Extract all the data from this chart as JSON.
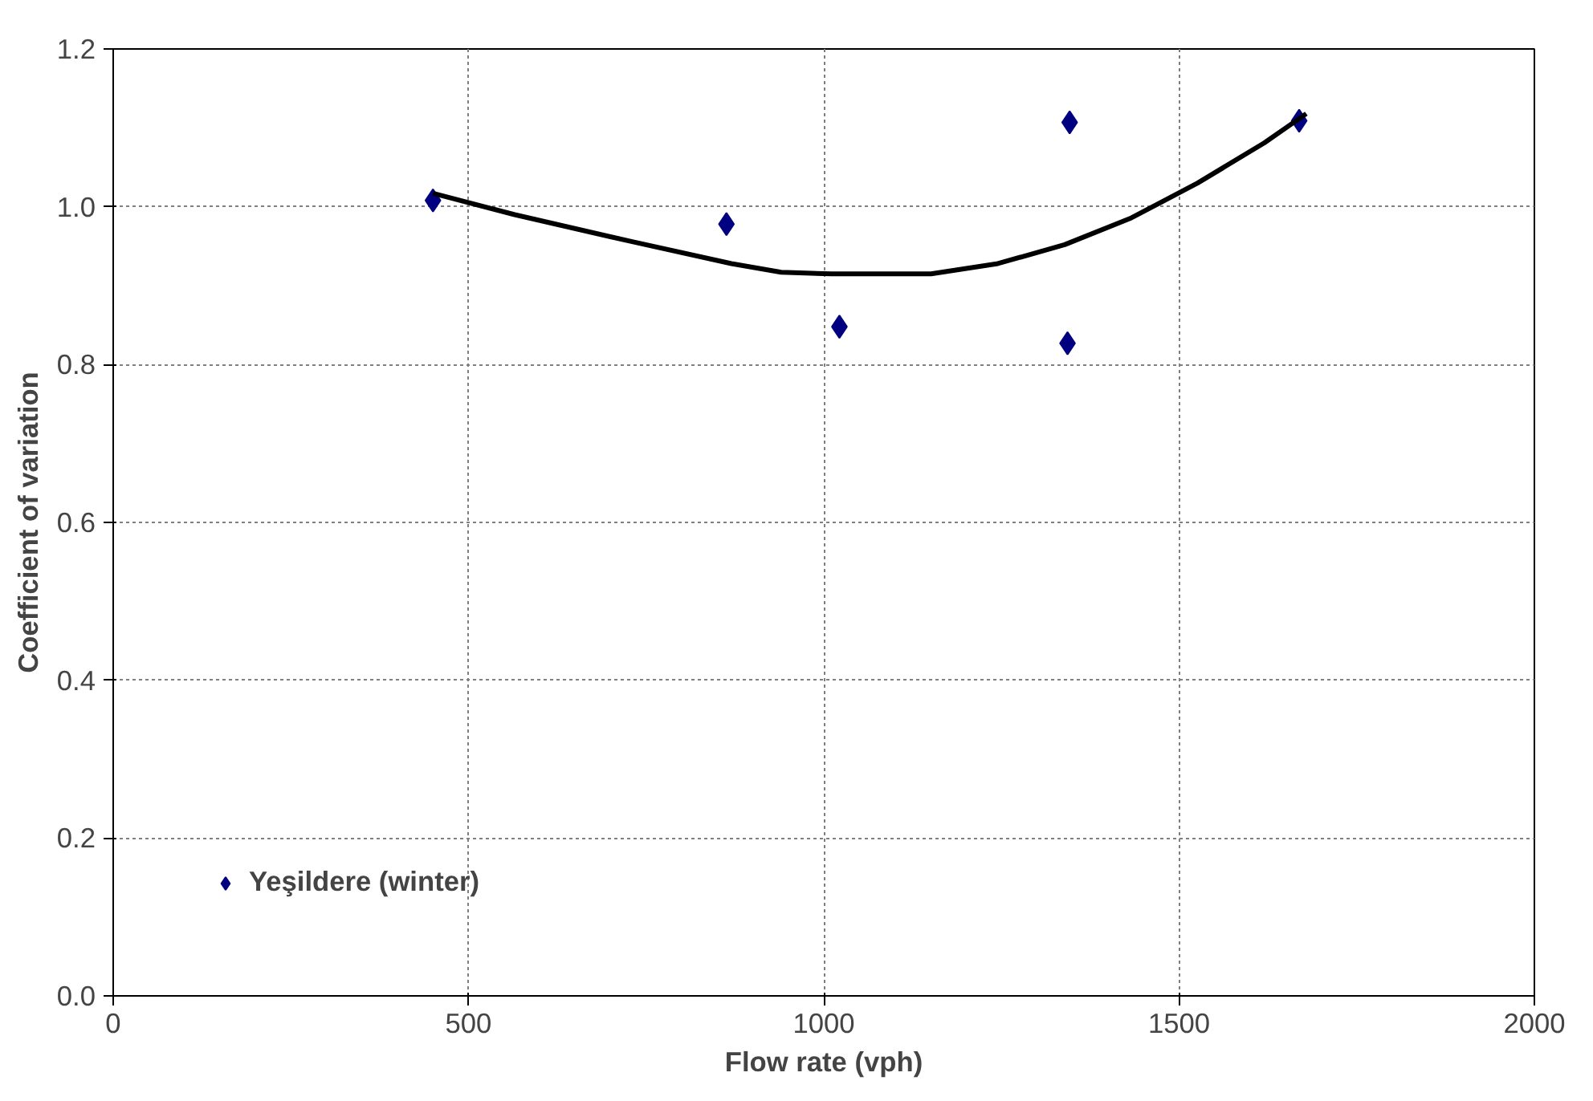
{
  "chart_data": {
    "type": "scatter",
    "xlabel": "Flow rate (vph)",
    "ylabel": "Coefficient of variation",
    "xlim": [
      0,
      2000
    ],
    "ylim": [
      0,
      1.2
    ],
    "xticks": [
      0,
      500,
      1000,
      1500,
      2000
    ],
    "yticks": [
      {
        "value": 0,
        "label": "0.0"
      },
      {
        "value": 0.2,
        "label": "0.2"
      },
      {
        "value": 0.4,
        "label": "0.4"
      },
      {
        "value": 0.6,
        "label": "0.6"
      },
      {
        "value": 0.8,
        "label": "0.8"
      },
      {
        "value": 1.0,
        "label": "1.0"
      },
      {
        "value": 1.2,
        "label": "1.2"
      }
    ],
    "grid": true,
    "legend": "bottom left",
    "marker": "diamond",
    "series": [
      {
        "name": "Yeşildere (winter)",
        "color": "#000080",
        "x": [
          450,
          863,
          1022,
          1346,
          1343,
          1669
        ],
        "values": [
          1.008,
          0.978,
          0.848,
          1.107,
          0.827,
          1.109
        ]
      },
      {
        "type": "line",
        "color": "#000000",
        "line_style": "solid",
        "marker": "none",
        "x": [
          450,
          565,
          729,
          870,
          940,
          1011,
          1151,
          1245,
          1339,
          1433,
          1526,
          1620,
          1679
        ],
        "values": [
          1.017,
          0.99,
          0.956,
          0.928,
          0.917,
          0.915,
          0.915,
          0.928,
          0.952,
          0.986,
          1.03,
          1.081,
          1.118
        ]
      }
    ]
  }
}
